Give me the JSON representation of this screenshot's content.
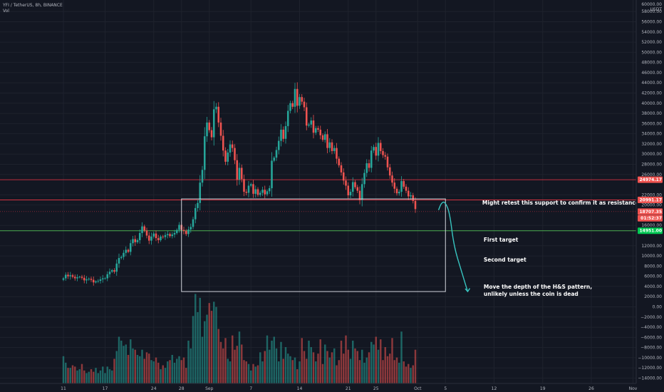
{
  "header": {
    "symbol_line": "YFI / TetherUS, 8h, BINANCE",
    "volume_label": "Vol"
  },
  "axis": {
    "currency": "USDT"
  },
  "colors": {
    "background": "#131722",
    "up": "#26a69a",
    "down": "#ef5350",
    "grid": "#1e222d",
    "resistance_line": "#f23645",
    "support_line": "#22ab94",
    "target_line": "#4caf50",
    "arrow": "#38c5c0",
    "box": "#d1d4dc",
    "axis_text": "#b2b5be"
  },
  "chart_data": {
    "type": "candlestick",
    "symbol": "YFI / TetherUS",
    "interval": "8h",
    "exchange": "BINANCE",
    "y_ticks": [
      58000,
      56000,
      54000,
      52000,
      50000,
      48000,
      46000,
      44000,
      42000,
      40000,
      38000,
      36000,
      34000,
      32000,
      30000,
      28000,
      26000,
      22000,
      20000,
      16000,
      12000,
      10000,
      8000,
      6000,
      4000,
      2000,
      0,
      -2000,
      -4000,
      -6000,
      -8000,
      -10000,
      -12000,
      -14000
    ],
    "y_tick_labels": [
      "58000.00",
      "56000.00",
      "54000.00",
      "52000.00",
      "50000.00",
      "48000.00",
      "46000.00",
      "44000.00",
      "42000.00",
      "40000.00",
      "38000.00",
      "36000.00",
      "34000.00",
      "32000.00",
      "30000.00",
      "28000.00",
      "26000.00",
      "22000.00",
      "20000.00",
      "16000.00",
      "12000.00",
      "10000.00",
      "8000.00",
      "6000.00",
      "4000.00",
      "2000.00",
      "0.00",
      "−2000.00",
      "−4000.00",
      "−6000.00",
      "−8000.00",
      "−10000.00",
      "−12000.00",
      "−14000.00"
    ],
    "y_top_label": "60000.00",
    "x_labels": [
      {
        "label": "11",
        "day": 0
      },
      {
        "label": "17",
        "day": 6
      },
      {
        "label": "24",
        "day": 13
      },
      {
        "label": "28",
        "day": 17
      },
      {
        "label": "Sep",
        "day": 21
      },
      {
        "label": "7",
        "day": 27
      },
      {
        "label": "14",
        "day": 34
      },
      {
        "label": "21",
        "day": 41
      },
      {
        "label": "25",
        "day": 45
      },
      {
        "label": "Oct",
        "day": 51
      },
      {
        "label": "5",
        "day": 55
      },
      {
        "label": "12",
        "day": 62
      },
      {
        "label": "19",
        "day": 69
      },
      {
        "label": "26",
        "day": 76
      },
      {
        "label": "Nov",
        "day": 82
      }
    ],
    "levels": [
      {
        "name": "upper-resistance",
        "value": 24974.17,
        "label": "24974.17"
      },
      {
        "name": "neckline",
        "value": 20991.17,
        "label": "20991.17"
      },
      {
        "name": "current",
        "value": 18707.35,
        "label": "18707.35"
      },
      {
        "name": "countdown",
        "value": 17400,
        "label": "01:52:37"
      },
      {
        "name": "first-target",
        "value": 14951,
        "label": "14951.00"
      }
    ],
    "hs_box": {
      "day_start": 17,
      "day_end": 55,
      "top": 21200,
      "bottom": 3000
    },
    "projection_path": [
      {
        "day": 54.0,
        "value": 19000
      },
      {
        "day": 54.4,
        "value": 20400
      },
      {
        "day": 54.9,
        "value": 20700
      },
      {
        "day": 55.6,
        "value": 18600
      },
      {
        "day": 56.2,
        "value": 12000
      },
      {
        "day": 57.3,
        "value": 7000
      },
      {
        "day": 58.2,
        "value": 3000
      }
    ],
    "annotations": [
      {
        "text": "Might retest this support to confirm it as resistance",
        "day": 60.3,
        "value": 20100
      },
      {
        "text": "First target",
        "day": 60.5,
        "value": 12800
      },
      {
        "text": "Second target",
        "day": 60.5,
        "value": 8900
      },
      {
        "text": "Move the depth of the H&S pattern,",
        "day": 60.5,
        "value": 3600
      },
      {
        "text": "unlikely unless the coin is dead",
        "day": 60.5,
        "value": 2200
      }
    ],
    "candles_8h_close": [
      5600,
      6300,
      6000,
      6200,
      5900,
      5600,
      5800,
      5900,
      5700,
      5200,
      5400,
      5500,
      5300,
      4800,
      5000,
      5100,
      5400,
      5600,
      5600,
      6400,
      6900,
      7200,
      6900,
      8500,
      9600,
      9800,
      10600,
      11200,
      10800,
      12500,
      13300,
      12700,
      13100,
      14500,
      15800,
      15000,
      14000,
      13000,
      13800,
      14400,
      13500,
      13100,
      13800,
      13700,
      14100,
      14300,
      13900,
      14200,
      14500,
      15100,
      16100,
      15100,
      14900,
      14300,
      15200,
      15700,
      17200,
      19400,
      20400,
      24400,
      26900,
      33500,
      36200,
      34700,
      33300,
      38800,
      39300,
      36200,
      33600,
      30700,
      28500,
      30300,
      31900,
      31200,
      28800,
      25000,
      27300,
      25100,
      22600,
      22400,
      23800,
      24100,
      22200,
      23100,
      22000,
      22400,
      23000,
      22100,
      22700,
      23300,
      28700,
      29300,
      30800,
      32600,
      34800,
      33000,
      35500,
      38500,
      40000,
      39300,
      42800,
      39500,
      41200,
      40300,
      39200,
      35600,
      35800,
      36600,
      34200,
      35100,
      34800,
      33700,
      32800,
      33900,
      31200,
      32300,
      30600,
      31200,
      29100,
      27800,
      26400,
      24800,
      23800,
      21900,
      22600,
      24500,
      23500,
      22800,
      21000,
      24100,
      26300,
      28200,
      27300,
      30700,
      31400,
      29700,
      32200,
      30600,
      29800,
      29500,
      27400,
      25800,
      24400,
      23200,
      22300,
      22600,
      24700,
      23600,
      22800,
      21700,
      21900,
      20800,
      19200
    ],
    "volume_notional": [
      2100,
      1600,
      1200,
      1200,
      1400,
      1300,
      1000,
      1100,
      1500,
      1000,
      800,
      900,
      1100,
      900,
      1200,
      800,
      1000,
      1300,
      800,
      1300,
      1100,
      1000,
      1900,
      2500,
      3600,
      3300,
      2900,
      3000,
      2200,
      3400,
      2700,
      2600,
      2200,
      2100,
      2600,
      1900,
      2400,
      2300,
      1800,
      1700,
      2000,
      1600,
      1100,
      1400,
      1200,
      1700,
      1800,
      2200,
      1600,
      1900,
      2100,
      1800,
      2000,
      1200,
      3300,
      2700,
      5200,
      6900,
      5500,
      6600,
      3600,
      4800,
      5300,
      6200,
      5600,
      6300,
      5900,
      4200,
      3200,
      2700,
      3500,
      1900,
      1700,
      3700,
      2600,
      2900,
      4000,
      3000,
      1800,
      1700,
      1500,
      1000,
      1500,
      1300,
      1400,
      2400,
      1700,
      2500,
      3700,
      2600,
      3300,
      3600,
      2700,
      1700,
      3200,
      1900,
      2800,
      2300,
      2100,
      1800,
      2000,
      1100,
      1700,
      3500,
      2500,
      1900,
      3300,
      2800,
      2400,
      1700,
      2300,
      3400,
      1500,
      3000,
      2500,
      2000,
      2400,
      2700,
      1400,
      1800,
      3300,
      2300,
      3700,
      2600,
      1900,
      3300,
      2700,
      2500,
      1800,
      2600,
      1600,
      2000,
      2400,
      3200,
      3000,
      3600,
      2600,
      3400,
      1800,
      2800,
      2100,
      2300,
      3500,
      1800,
      2000,
      1600,
      4000,
      1700,
      1300,
      1500,
      1200,
      1400,
      2600
    ]
  }
}
